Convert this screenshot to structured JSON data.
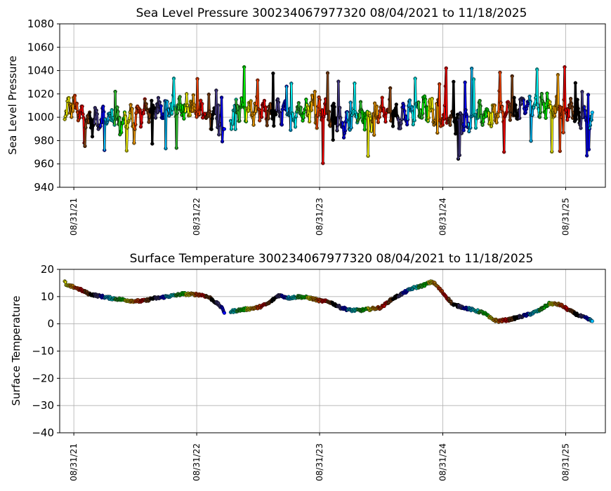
{
  "chart_data": [
    {
      "type": "scatter",
      "title": "Sea Level Pressure 300234067977320  08/04/2021 to 11/18/2025",
      "xlabel": "",
      "ylabel": "Sea Level Pressure",
      "ylim": [
        940,
        1080
      ],
      "yticks": [
        940,
        960,
        980,
        1000,
        1020,
        1040,
        1060,
        1080
      ],
      "xlim": [
        "2021-07-20",
        "2025-12-27"
      ],
      "xticks": [
        "2021-08-31",
        "2022-08-31",
        "2023-08-31",
        "2024-08-31",
        "2025-08-31"
      ],
      "xtick_labels": [
        "08/31/21",
        "08/31/22",
        "08/31/23",
        "08/31/24",
        "08/31/25"
      ],
      "grid": true,
      "color_cycle": [
        "#ffff00",
        "#ffa500",
        "#ff4500",
        "#ff0000",
        "#8b4513",
        "#000000",
        "#483d8b",
        "#0000ff",
        "#00bfff",
        "#00ffff",
        "#32cd32",
        "#00ff00"
      ],
      "series": [
        {
          "segments": [
            {
              "start": "2021-08-04",
              "end": "2022-11-22",
              "points": [
                [
                  "2021-08-04",
                  1002
                ],
                [
                  "2021-08-25",
                  1012
                ],
                [
                  "2021-09-15",
                  1003
                ],
                [
                  "2021-10-06",
                  998
                ],
                [
                  "2021-10-27",
                  996
                ],
                [
                  "2021-11-17",
                  1000
                ],
                [
                  "2021-12-08",
                  998
                ],
                [
                  "2021-12-29",
                  1002
                ],
                [
                  "2022-01-19",
                  995
                ],
                [
                  "2022-02-09",
                  998
                ],
                [
                  "2022-03-02",
                  1000
                ],
                [
                  "2022-03-23",
                  1005
                ],
                [
                  "2022-04-13",
                  1006
                ],
                [
                  "2022-05-04",
                  1008
                ],
                [
                  "2022-05-25",
                  1004
                ],
                [
                  "2022-06-15",
                  1005
                ],
                [
                  "2022-07-06",
                  1009
                ],
                [
                  "2022-07-27",
                  1010
                ],
                [
                  "2022-08-17",
                  1008
                ],
                [
                  "2022-09-07",
                  1005
                ],
                [
                  "2022-09-28",
                  1001
                ],
                [
                  "2022-10-19",
                  999
                ],
                [
                  "2022-11-09",
                  996
                ],
                [
                  "2022-11-22",
                  993
                ]
              ]
            },
            {
              "start": "2022-12-10",
              "end": "2025-11-18",
              "points": [
                [
                  "2022-12-10",
                  1000
                ],
                [
                  "2023-01-05",
                  1008
                ],
                [
                  "2023-02-02",
                  1006
                ],
                [
                  "2023-03-02",
                  1005
                ],
                [
                  "2023-03-30",
                  1004
                ],
                [
                  "2023-04-27",
                  1004
                ],
                [
                  "2023-05-25",
                  1003
                ],
                [
                  "2023-06-22",
                  1004
                ],
                [
                  "2023-07-20",
                  1008
                ],
                [
                  "2023-08-17",
                  1008
                ],
                [
                  "2023-09-14",
                  1005
                ],
                [
                  "2023-10-12",
                  1000
                ],
                [
                  "2023-11-09",
                  995
                ],
                [
                  "2023-12-07",
                  998
                ],
                [
                  "2024-01-04",
                  1002
                ],
                [
                  "2024-02-01",
                  1000
                ],
                [
                  "2024-02-29",
                  1005
                ],
                [
                  "2024-03-28",
                  1004
                ],
                [
                  "2024-04-25",
                  1002
                ],
                [
                  "2024-05-23",
                  1003
                ],
                [
                  "2024-06-20",
                  1005
                ],
                [
                  "2024-07-18",
                  1008
                ],
                [
                  "2024-08-15",
                  1003
                ],
                [
                  "2024-09-12",
                  999
                ],
                [
                  "2024-10-10",
                  996
                ],
                [
                  "2024-11-07",
                  998
                ],
                [
                  "2024-12-05",
                  1000
                ],
                [
                  "2025-01-02",
                  1003
                ],
                [
                  "2025-01-30",
                  1001
                ],
                [
                  "2025-02-27",
                  1002
                ],
                [
                  "2025-03-27",
                  1005
                ],
                [
                  "2025-04-24",
                  1008
                ],
                [
                  "2025-05-22",
                  1010
                ],
                [
                  "2025-06-19",
                  1010
                ],
                [
                  "2025-07-17",
                  1008
                ],
                [
                  "2025-08-14",
                  1008
                ],
                [
                  "2025-09-11",
                  1006
                ],
                [
                  "2025-10-09",
                  1002
                ],
                [
                  "2025-11-06",
                  999
                ],
                [
                  "2025-11-18",
                  996
                ]
              ]
            }
          ]
        }
      ]
    },
    {
      "type": "scatter",
      "title": "Surface Temperature 300234067977320  08/04/2021 to 11/18/2025",
      "xlabel": "",
      "ylabel": "Surface Temperature",
      "ylim": [
        -40,
        20
      ],
      "yticks": [
        -40,
        -30,
        -20,
        -10,
        0,
        10,
        20
      ],
      "xlim": [
        "2021-07-20",
        "2025-12-27"
      ],
      "xticks": [
        "2021-08-31",
        "2022-08-31",
        "2023-08-31",
        "2024-08-31",
        "2025-08-31"
      ],
      "xtick_labels": [
        "08/31/21",
        "08/31/22",
        "08/31/23",
        "08/31/24",
        "08/31/25"
      ],
      "grid": true,
      "color_cycle": [
        "#ffff00",
        "#ffa500",
        "#ff4500",
        "#ff0000",
        "#8b4513",
        "#000000",
        "#483d8b",
        "#0000ff",
        "#00bfff",
        "#00ffff",
        "#32cd32",
        "#00ff00"
      ],
      "series": [
        {
          "segments": [
            {
              "start": "2021-08-04",
              "end": "2022-11-22",
              "points": [
                [
                  "2021-08-04",
                  15.5
                ],
                [
                  "2021-08-10",
                  14
                ],
                [
                  "2021-09-01",
                  13.5
                ],
                [
                  "2021-09-20",
                  12.5
                ],
                [
                  "2021-10-15",
                  11
                ],
                [
                  "2021-11-15",
                  10.2
                ],
                [
                  "2021-12-15",
                  9.5
                ],
                [
                  "2022-01-15",
                  9
                ],
                [
                  "2022-02-15",
                  8.5
                ],
                [
                  "2022-03-15",
                  8.3
                ],
                [
                  "2022-04-01",
                  8.5
                ],
                [
                  "2022-04-20",
                  9.3
                ],
                [
                  "2022-05-10",
                  9.5
                ],
                [
                  "2022-06-01",
                  10
                ],
                [
                  "2022-07-01",
                  10.5
                ],
                [
                  "2022-07-20",
                  11
                ],
                [
                  "2022-08-15",
                  10.8
                ],
                [
                  "2022-09-01",
                  10.8
                ],
                [
                  "2022-09-20",
                  10.5
                ],
                [
                  "2022-10-10",
                  9.5
                ],
                [
                  "2022-10-25",
                  8
                ],
                [
                  "2022-11-05",
                  7
                ],
                [
                  "2022-11-15",
                  5.5
                ],
                [
                  "2022-11-22",
                  4
                ]
              ]
            },
            {
              "start": "2022-12-10",
              "end": "2025-11-18",
              "points": [
                [
                  "2022-12-10",
                  4.5
                ],
                [
                  "2023-01-01",
                  5
                ],
                [
                  "2023-02-01",
                  5.5
                ],
                [
                  "2023-03-01",
                  6
                ],
                [
                  "2023-04-01",
                  7.5
                ],
                [
                  "2023-05-01",
                  10.5
                ],
                [
                  "2023-06-01",
                  9.5
                ],
                [
                  "2023-07-01",
                  10
                ],
                [
                  "2023-08-01",
                  9.5
                ],
                [
                  "2023-09-01",
                  8.5
                ],
                [
                  "2023-10-01",
                  8
                ],
                [
                  "2023-11-01",
                  6
                ],
                [
                  "2023-12-01",
                  5
                ],
                [
                  "2024-01-01",
                  5
                ],
                [
                  "2024-02-01",
                  5.5
                ],
                [
                  "2024-03-01",
                  6
                ],
                [
                  "2024-04-01",
                  9
                ],
                [
                  "2024-05-01",
                  11
                ],
                [
                  "2024-06-01",
                  13
                ],
                [
                  "2024-07-01",
                  14
                ],
                [
                  "2024-08-01",
                  15.5
                ],
                [
                  "2024-08-20",
                  13
                ],
                [
                  "2024-09-10",
                  10
                ],
                [
                  "2024-10-01",
                  7
                ],
                [
                  "2024-11-01",
                  6
                ],
                [
                  "2024-12-01",
                  5
                ],
                [
                  "2025-01-01",
                  4
                ],
                [
                  "2025-01-20",
                  2
                ],
                [
                  "2025-02-10",
                  1
                ],
                [
                  "2025-03-15",
                  1.5
                ],
                [
                  "2025-04-15",
                  2.5
                ],
                [
                  "2025-05-15",
                  3.5
                ],
                [
                  "2025-06-15",
                  5
                ],
                [
                  "2025-07-15",
                  7.5
                ],
                [
                  "2025-08-15",
                  7
                ],
                [
                  "2025-09-10",
                  5
                ],
                [
                  "2025-10-10",
                  3
                ],
                [
                  "2025-11-01",
                  2
                ],
                [
                  "2025-11-18",
                  1
                ]
              ]
            }
          ]
        }
      ]
    }
  ]
}
